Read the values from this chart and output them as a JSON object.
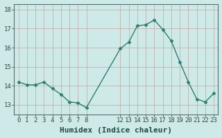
{
  "x": [
    0,
    1,
    2,
    3,
    4,
    5,
    6,
    7,
    8,
    12,
    13,
    14,
    15,
    16,
    17,
    18,
    19,
    20,
    21,
    22,
    23
  ],
  "y": [
    14.2,
    14.05,
    14.05,
    14.2,
    13.85,
    13.55,
    13.15,
    13.1,
    12.85,
    15.95,
    16.3,
    17.15,
    17.2,
    17.45,
    16.95,
    16.35,
    15.25,
    14.2,
    13.3,
    13.15,
    13.6
  ],
  "line_color": "#2e7d6e",
  "marker": "D",
  "marker_size": 2.5,
  "bg_color": "#ceeae8",
  "grid_color_vertical": "#c8a0a0",
  "grid_color_horizontal": "#c8a0a0",
  "xlabel": "Humidex (Indice chaleur)",
  "xlabel_fontsize": 8,
  "ylim": [
    12.5,
    18.3
  ],
  "yticks": [
    13,
    14,
    15,
    16,
    17,
    18
  ],
  "xticks": [
    0,
    1,
    2,
    3,
    4,
    5,
    6,
    7,
    8,
    12,
    13,
    14,
    15,
    16,
    17,
    18,
    19,
    20,
    21,
    22,
    23
  ],
  "tick_fontsize": 6.5,
  "linewidth": 1.0
}
